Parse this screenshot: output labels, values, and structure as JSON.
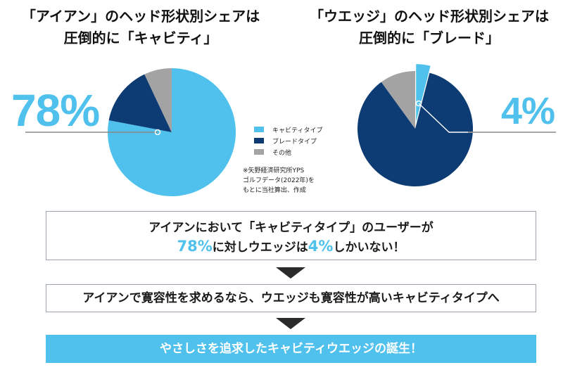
{
  "titles": {
    "left": [
      "「アイアン」のヘッド形状別シェアは",
      "圧倒的に「キャビティ」"
    ],
    "right": [
      "「ウエッジ」のヘッド形状別シェアは",
      "圧倒的に「ブレード」"
    ]
  },
  "chart_data": [
    {
      "type": "pie",
      "categories": [
        "キャビティタイプ",
        "ブレードタイプ",
        "その他"
      ],
      "values": [
        78,
        15,
        7
      ],
      "highlight": "78%",
      "colors": [
        "#4fc1ec",
        "#0d3b73",
        "#a3a3a3"
      ]
    },
    {
      "type": "pie",
      "categories": [
        "キャビティタイプ",
        "ブレードタイプ",
        "その他"
      ],
      "values": [
        4,
        86,
        10
      ],
      "highlight": "4%",
      "colors": [
        "#4fc1ec",
        "#0d3b73",
        "#a3a3a3"
      ]
    }
  ],
  "legend": {
    "items": [
      {
        "label": "キャビティタイプ",
        "color": "#4fc1ec"
      },
      {
        "label": "ブレードタイプ",
        "color": "#0d3b73"
      },
      {
        "label": "その他",
        "color": "#a3a3a3"
      }
    ]
  },
  "note": [
    "※矢野経済研究所YPS",
    "ゴルフデータ(2022年)を",
    "もとに当社算出、作成"
  ],
  "message": {
    "line1": "アイアンにおいて「キャビティタイプ」のユーザーが",
    "pct_iron": "78%",
    "mid": "に対しウエッジは",
    "pct_wedge": "4%",
    "end": "しかいない！"
  },
  "statement": "アイアンで寛容性を求めるなら、ウエッジも寛容性が高いキャビティタイプへ",
  "conclusion": "やさしさを追求したキャビティウエッジの誕生！",
  "colors": {
    "accent": "#4fc1ec",
    "navy": "#0d3b73",
    "gray": "#a3a3a3"
  }
}
